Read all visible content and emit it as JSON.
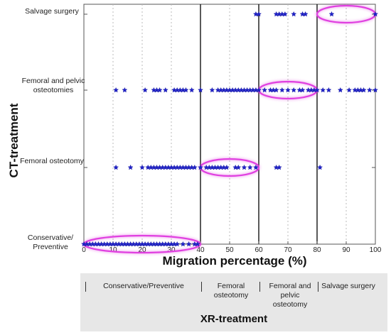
{
  "chart_data": {
    "type": "scatter",
    "xlabel": "Migration percentage (%)",
    "ylabel": "CT-treatment",
    "xlim": [
      0,
      100
    ],
    "x_ticks": [
      "0",
      "10",
      "20",
      "30",
      "40",
      "50",
      "60",
      "70",
      "80",
      "90",
      "100"
    ],
    "grid": "vertical dashed",
    "categories": [
      "Conservative/ Preventive",
      "Femoral osteotomy",
      "Femoral and pelvic osteotomies",
      "Salvage surgery"
    ],
    "points": [
      {
        "category": "Salvage surgery",
        "x": [
          59,
          60,
          66,
          67,
          68,
          69,
          72,
          75,
          76,
          85,
          100
        ]
      },
      {
        "category": "Femoral and pelvic osteotomies",
        "x": [
          11,
          14,
          21,
          24,
          25,
          26,
          28,
          31,
          32,
          33,
          34,
          35,
          37,
          40,
          44,
          46,
          47,
          48,
          49,
          50,
          51,
          52,
          53,
          54,
          55,
          56,
          57,
          58,
          59,
          60,
          62,
          64,
          65,
          66,
          68,
          70,
          72,
          74,
          75,
          77,
          78,
          79,
          80,
          82,
          84,
          88,
          91,
          93,
          94,
          95,
          96,
          98,
          100
        ]
      },
      {
        "category": "Femoral osteotomy",
        "x": [
          11,
          16,
          20,
          22,
          23,
          24,
          25,
          26,
          27,
          28,
          29,
          30,
          31,
          32,
          33,
          34,
          35,
          36,
          37,
          38,
          40,
          42,
          43,
          44,
          45,
          46,
          47,
          48,
          49,
          52,
          53,
          55,
          57,
          59,
          66,
          67,
          81
        ]
      },
      {
        "category": "Conservative/ Preventive",
        "x": [
          0,
          1,
          2,
          3,
          4,
          5,
          6,
          7,
          8,
          9,
          10,
          11,
          12,
          13,
          14,
          15,
          16,
          17,
          18,
          19,
          20,
          21,
          22,
          23,
          24,
          25,
          26,
          27,
          28,
          29,
          30,
          31,
          32,
          34,
          36,
          38,
          39
        ]
      }
    ],
    "highlights": [
      {
        "category": "Salvage surgery",
        "x_range": [
          80,
          100
        ]
      },
      {
        "category": "Femoral and pelvic osteotomies",
        "x_range": [
          60,
          80
        ]
      },
      {
        "category": "Femoral osteotomy",
        "x_range": [
          40,
          60
        ]
      },
      {
        "category": "Conservative/ Preventive",
        "x_range": [
          0,
          40
        ]
      }
    ],
    "xr_boundaries": [
      40,
      60,
      80
    ],
    "xr_treatment": {
      "title": "XR-treatment",
      "categories": [
        "Conservative/Preventive",
        "Femoral osteotomy",
        "Femoral and pelvic osteotomy",
        "Salvage surgery"
      ]
    },
    "colors": {
      "points": "#1f22c8",
      "highlight": "#e040e0"
    }
  }
}
